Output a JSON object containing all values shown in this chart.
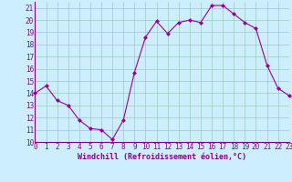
{
  "x": [
    0,
    1,
    2,
    3,
    4,
    5,
    6,
    7,
    8,
    9,
    10,
    11,
    12,
    13,
    14,
    15,
    16,
    17,
    18,
    19,
    20,
    21,
    22,
    23
  ],
  "y": [
    14.0,
    14.6,
    13.4,
    13.0,
    11.8,
    11.1,
    11.0,
    10.2,
    11.8,
    15.7,
    18.6,
    19.9,
    18.9,
    19.8,
    20.0,
    19.8,
    21.2,
    21.2,
    20.5,
    19.8,
    19.3,
    16.3,
    14.4,
    13.8
  ],
  "line_color": "#990099",
  "marker": "D",
  "marker_size": 2.0,
  "line_width": 0.8,
  "xlim": [
    0,
    23
  ],
  "ylim": [
    10,
    21.5
  ],
  "yticks": [
    10,
    11,
    12,
    13,
    14,
    15,
    16,
    17,
    18,
    19,
    20,
    21
  ],
  "xticks": [
    0,
    1,
    2,
    3,
    4,
    5,
    6,
    7,
    8,
    9,
    10,
    11,
    12,
    13,
    14,
    15,
    16,
    17,
    18,
    19,
    20,
    21,
    22,
    23
  ],
  "xlabel": "Windchill (Refroidissement éolien,°C)",
  "xlabel_fontsize": 6.0,
  "xlabel_color": "#880088",
  "tick_fontsize": 5.5,
  "tick_color": "#880088",
  "bg_color": "#cceeff",
  "grid_color": "#99ccbb",
  "spine_color": "#880088"
}
